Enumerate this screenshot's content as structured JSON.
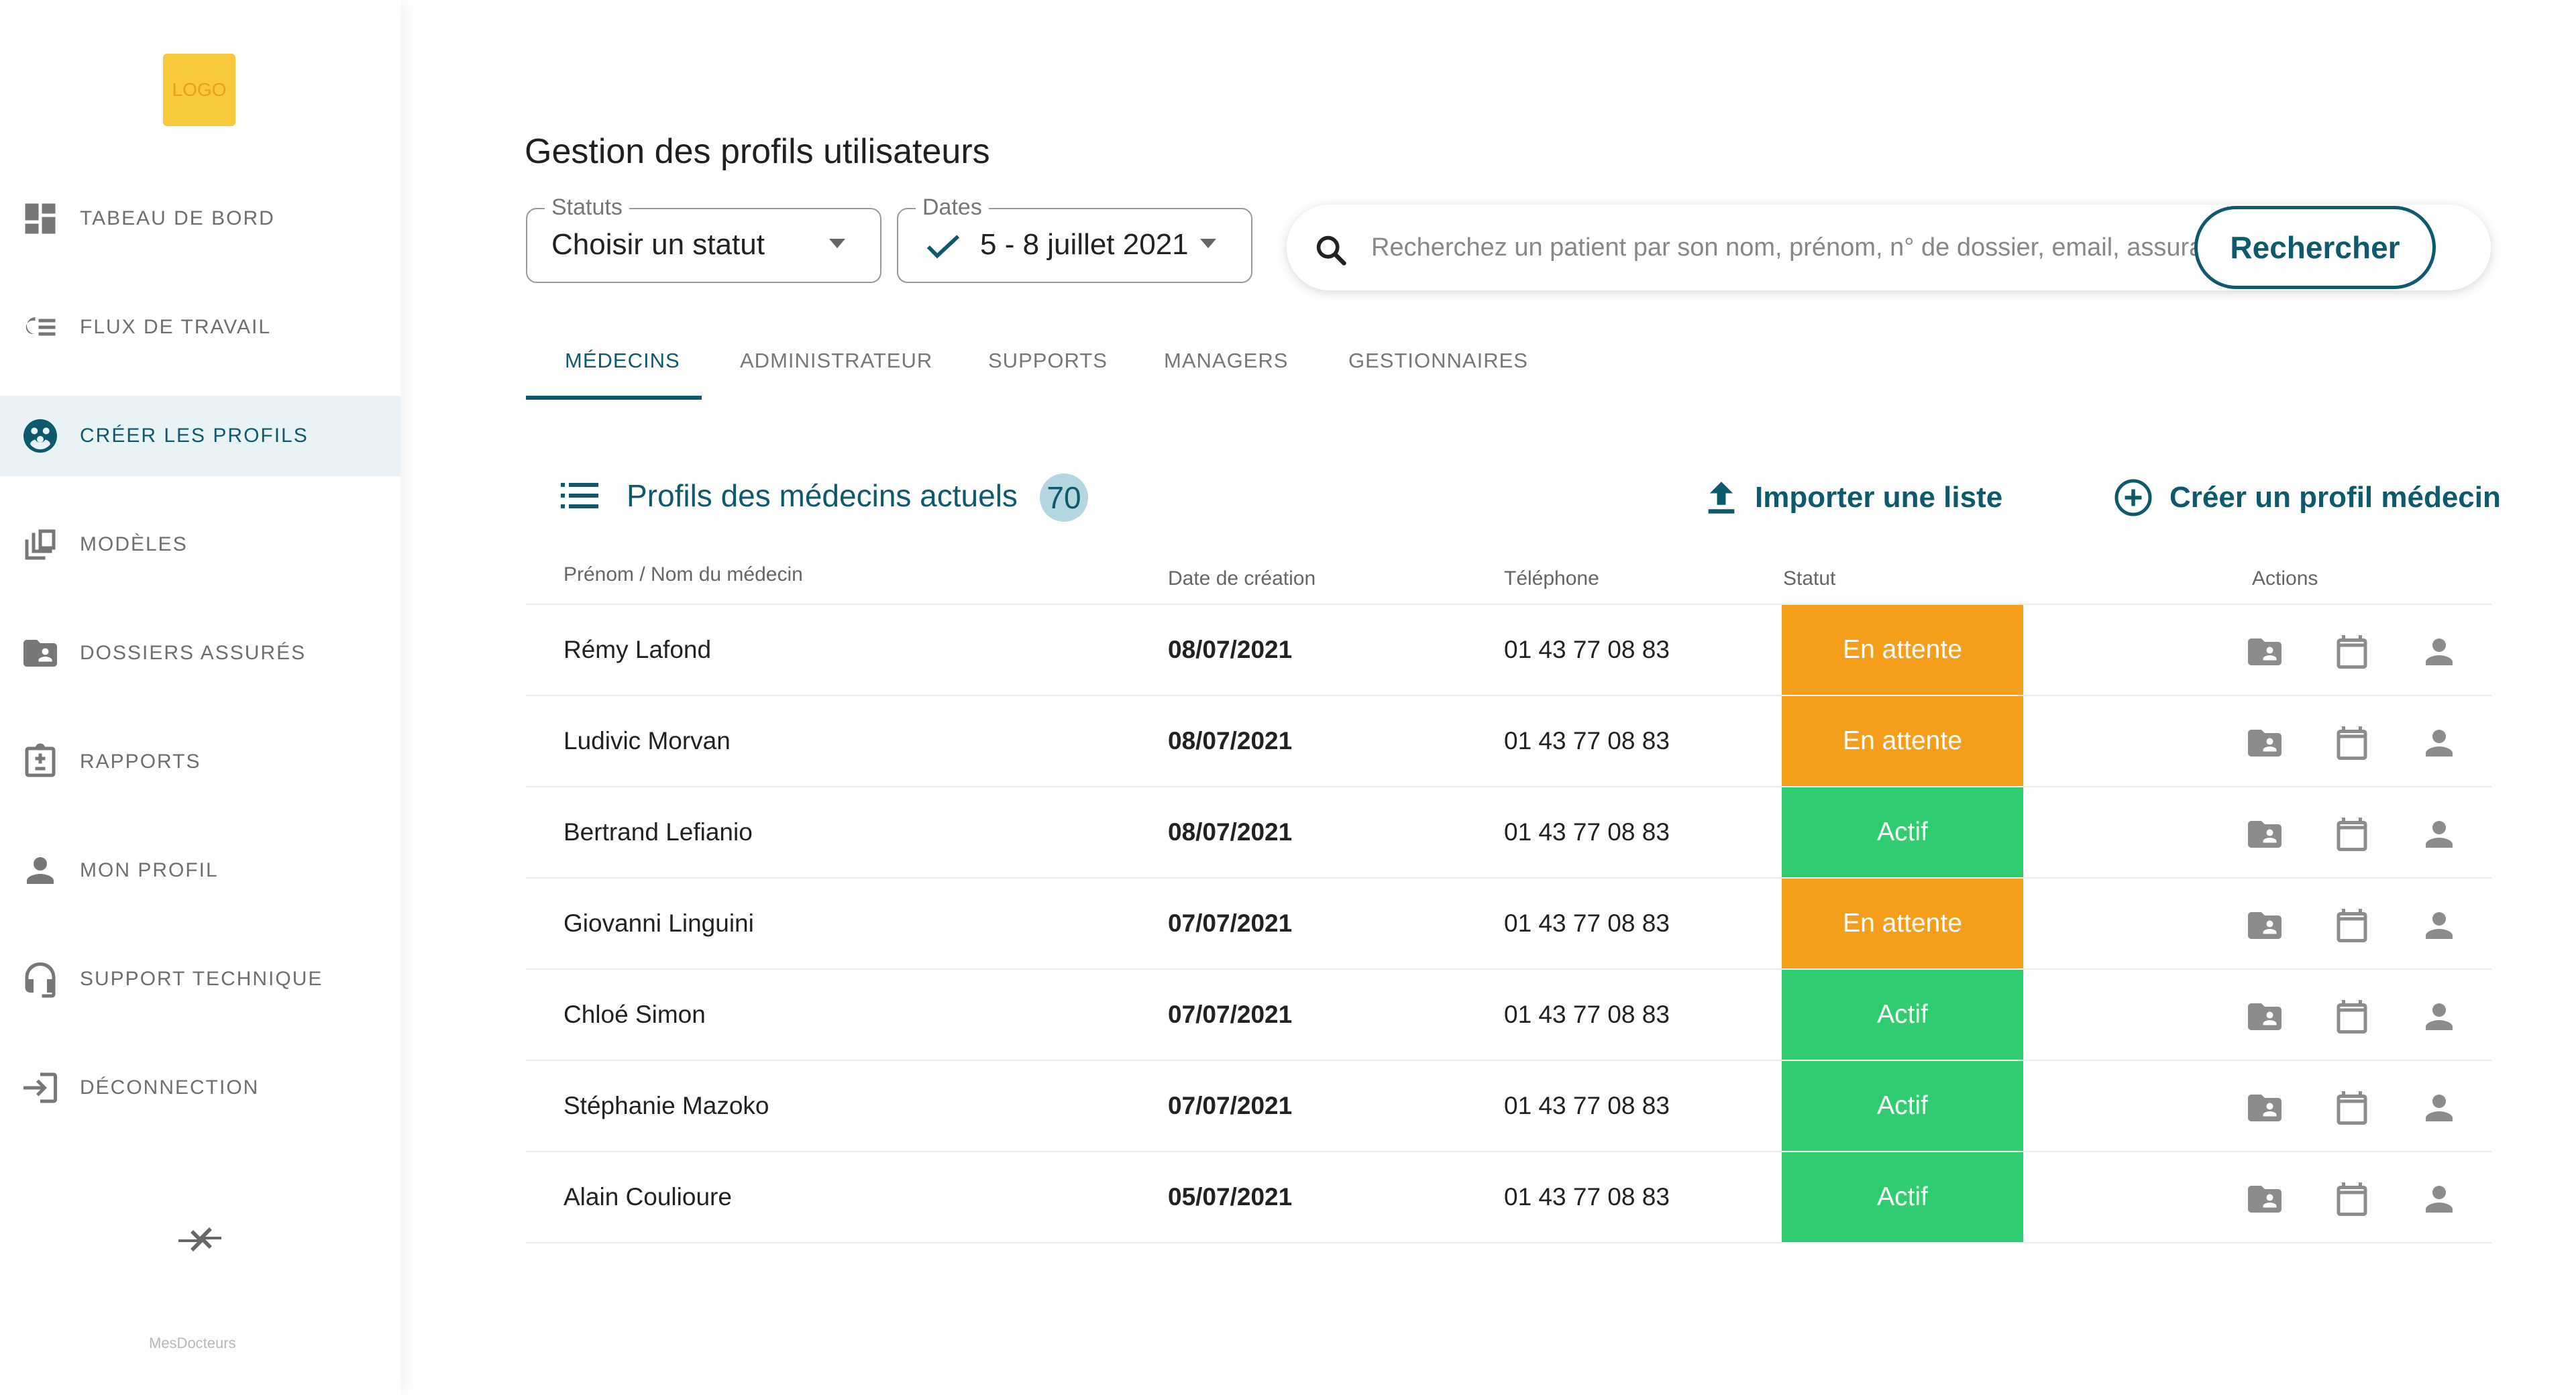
{
  "sidebar": {
    "logo_text": "LOGO",
    "items": [
      {
        "label": "TABEAU DE BORD",
        "icon": "dashboard-icon"
      },
      {
        "label": "FLUX DE TRAVAIL",
        "icon": "workflow-icon"
      },
      {
        "label": "CRÉER LES PROFILS",
        "icon": "profiles-icon",
        "active": true
      },
      {
        "label": "MODÈLES",
        "icon": "templates-icon"
      },
      {
        "label": "DOSSIERS ASSURÉS",
        "icon": "folder-icon"
      },
      {
        "label": "RAPPORTS",
        "icon": "report-icon"
      },
      {
        "label": "MON PROFIL",
        "icon": "user-icon"
      },
      {
        "label": "SUPPORT TECHNIQUE",
        "icon": "support-icon"
      },
      {
        "label": "DÉCONNECTION",
        "icon": "logout-icon"
      }
    ],
    "brand": "MesDocteurs"
  },
  "header": {
    "title": "Gestion des profils utilisateurs"
  },
  "filters": {
    "status": {
      "legend": "Statuts",
      "value": "Choisir un statut"
    },
    "dates": {
      "legend": "Dates",
      "value": "5 - 8 juillet 2021"
    }
  },
  "search": {
    "placeholder": "Recherchez un patient par son nom, prénom, n° de dossier, email, assurance",
    "button": "Rechercher"
  },
  "tabs": [
    {
      "label": "MÉDECINS",
      "active": true
    },
    {
      "label": "ADMINISTRATEUR"
    },
    {
      "label": "SUPPORTS"
    },
    {
      "label": "MANAGERS"
    },
    {
      "label": "GESTIONNAIRES"
    }
  ],
  "section": {
    "title": "Profils des médecins actuels",
    "count": "70",
    "import_label": "Importer une liste",
    "create_label": "Créer un profil médecin"
  },
  "table": {
    "columns": [
      "Prénom / Nom du médecin",
      "Date de création",
      "Téléphone",
      "Statut",
      "Actions"
    ],
    "rows": [
      {
        "name": "Rémy Lafond",
        "date": "08/07/2021",
        "phone": "01 43 77 08 83",
        "status": "En attente",
        "status_type": "pending"
      },
      {
        "name": "Ludivic Morvan",
        "date": "08/07/2021",
        "phone": "01 43 77 08 83",
        "status": "En attente",
        "status_type": "pending"
      },
      {
        "name": "Bertrand Lefianio",
        "date": "08/07/2021",
        "phone": "01 43 77 08 83",
        "status": "Actif",
        "status_type": "active"
      },
      {
        "name": "Giovanni Linguini",
        "date": "07/07/2021",
        "phone": "01 43 77 08 83",
        "status": "En attente",
        "status_type": "pending"
      },
      {
        "name": "Chloé Simon",
        "date": "07/07/2021",
        "phone": "01 43 77 08 83",
        "status": "Actif",
        "status_type": "active"
      },
      {
        "name": "Stéphanie Mazoko",
        "date": "07/07/2021",
        "phone": "01 43 77 08 83",
        "status": "Actif",
        "status_type": "active"
      },
      {
        "name": "Alain Coulioure",
        "date": "05/07/2021",
        "phone": "01 43 77 08 83",
        "status": "Actif",
        "status_type": "active"
      }
    ]
  },
  "colors": {
    "primary": "#0e5a6d",
    "pending": "#f49e1c",
    "active": "#2fcc71",
    "logo": "#f9c93c"
  }
}
